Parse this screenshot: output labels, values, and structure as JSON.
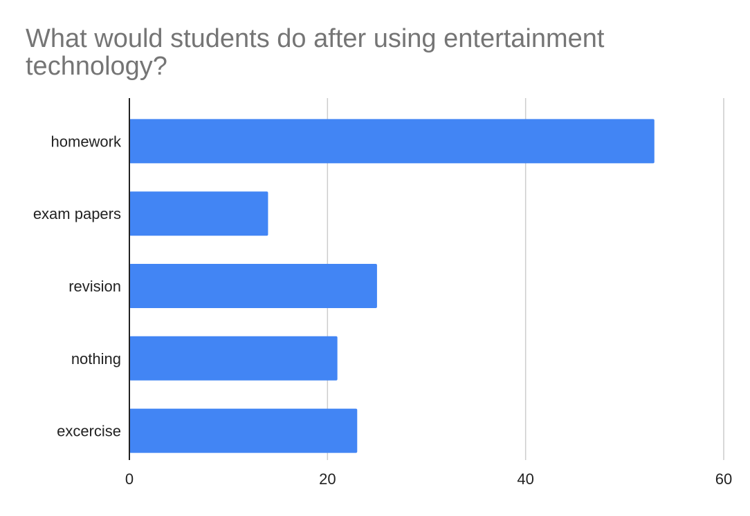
{
  "chart_data": {
    "type": "bar",
    "orientation": "horizontal",
    "title": "What would students do after using entertainment technology?",
    "title_lines": [
      "What would students do after using entertainment",
      "technology?"
    ],
    "categories": [
      "homework",
      "exam papers",
      "revision",
      "nothing",
      "excercise"
    ],
    "values": [
      53,
      14,
      25,
      21,
      23
    ],
    "xlim": [
      0,
      60
    ],
    "xticks": [
      0,
      20,
      40,
      60
    ],
    "xtick_labels": [
      "0",
      "20",
      "40",
      "60"
    ],
    "xlabel": "",
    "ylabel": "",
    "grid": true,
    "legend": "none",
    "colors": {
      "bar": "#4285f4",
      "grid": "#cccccc",
      "axis": "#222222",
      "title": "#757575"
    }
  }
}
